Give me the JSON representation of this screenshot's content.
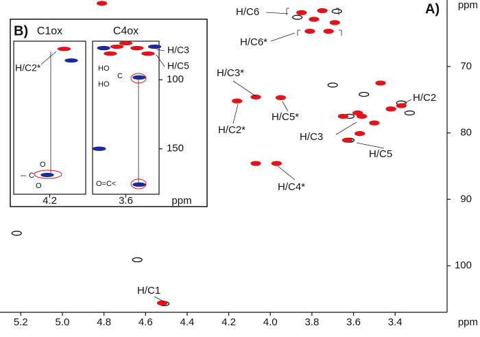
{
  "chart_data": [
    {
      "type": "scatter",
      "panel_label": "A)",
      "xlabel": "ppm",
      "ylabel": "ppm",
      "xlim": [
        5.3,
        3.15
      ],
      "ylim": [
        60,
        107
      ],
      "xticks": [
        5.2,
        {
          "value": 5,
          "label": "5.0"
        },
        4.8,
        4.6,
        4.4,
        4.2,
        {
          "value": 4,
          "label": "4.0"
        },
        3.8,
        3.6,
        3.4
      ],
      "yticks": [
        70,
        80,
        90,
        100
      ],
      "series": [
        {
          "color": "#111111",
          "x": [
            5.22,
            4.64,
            4.51,
            3.87,
            3.68,
            3.55,
            3.37,
            3.33,
            3.7,
            3.62,
            3.42,
            3.62
          ],
          "values": [
            95.1,
            99.1,
            105.7,
            62.6,
            61.7,
            74.2,
            75.5,
            77.0,
            72.8,
            81.1,
            76.4,
            77.5
          ]
        },
        {
          "color": "#e0151b",
          "x": [
            4.81,
            3.85,
            3.75,
            3.79,
            3.69,
            3.81,
            3.72,
            4.16,
            4.07,
            3.95,
            3.97,
            4.07,
            3.47,
            3.37,
            3.42,
            3.58,
            3.5,
            3.57,
            3.63,
            4.52,
            3.65,
            3.56
          ],
          "values": [
            60.5,
            61.9,
            61.6,
            62.9,
            63.4,
            64.7,
            64.7,
            75.2,
            74.6,
            74.7,
            84.6,
            84.6,
            72.5,
            75.9,
            76.4,
            77.0,
            78.5,
            80.1,
            81.1,
            105.6,
            77.5,
            77.5
          ]
        }
      ],
      "annotations": [
        "H/C6",
        "H/C6*",
        "H/C3*",
        "H/C2*",
        "H/C5*",
        "H/C3",
        "H/C5",
        "H/C4*",
        "H/C2",
        "H/C1"
      ]
    },
    {
      "type": "scatter",
      "panel_label": "B)",
      "title": "C1ox",
      "xlim": [
        4.35,
        4.05
      ],
      "ylim": [
        72,
        183
      ],
      "xticks": [
        4.2
      ],
      "series": [
        {
          "color": "#e0151b",
          "x": [
            4.14
          ],
          "values": [
            77.6
          ]
        },
        {
          "color": "#1c2a9c",
          "x": [
            4.21,
            4.11
          ],
          "values": [
            169,
            86
          ]
        }
      ],
      "annotations": [
        "H/C2*",
        "C",
        "O",
        "O"
      ]
    },
    {
      "type": "scatter",
      "title": "C4ox",
      "xlabel": "ppm",
      "xlim": [
        3.75,
        3.45
      ],
      "ylim": [
        72,
        183
      ],
      "xticks": [
        3.6
      ],
      "yticks": [
        100,
        150
      ],
      "series": [
        {
          "color": "#e0151b",
          "x": [
            3.64,
            3.55,
            3.67,
            3.5,
            3.6
          ],
          "values": [
            76,
            77,
            81,
            81,
            73.5
          ]
        },
        {
          "color": "#1c2a9c",
          "x": [
            3.7,
            3.47,
            3.54,
            3.54,
            3.72
          ],
          "values": [
            77,
            76,
            98.3,
            176,
            150
          ]
        }
      ],
      "annotations": [
        "H/C3",
        "H/C5",
        "HO",
        "HO",
        "C",
        "O=C<"
      ]
    }
  ]
}
